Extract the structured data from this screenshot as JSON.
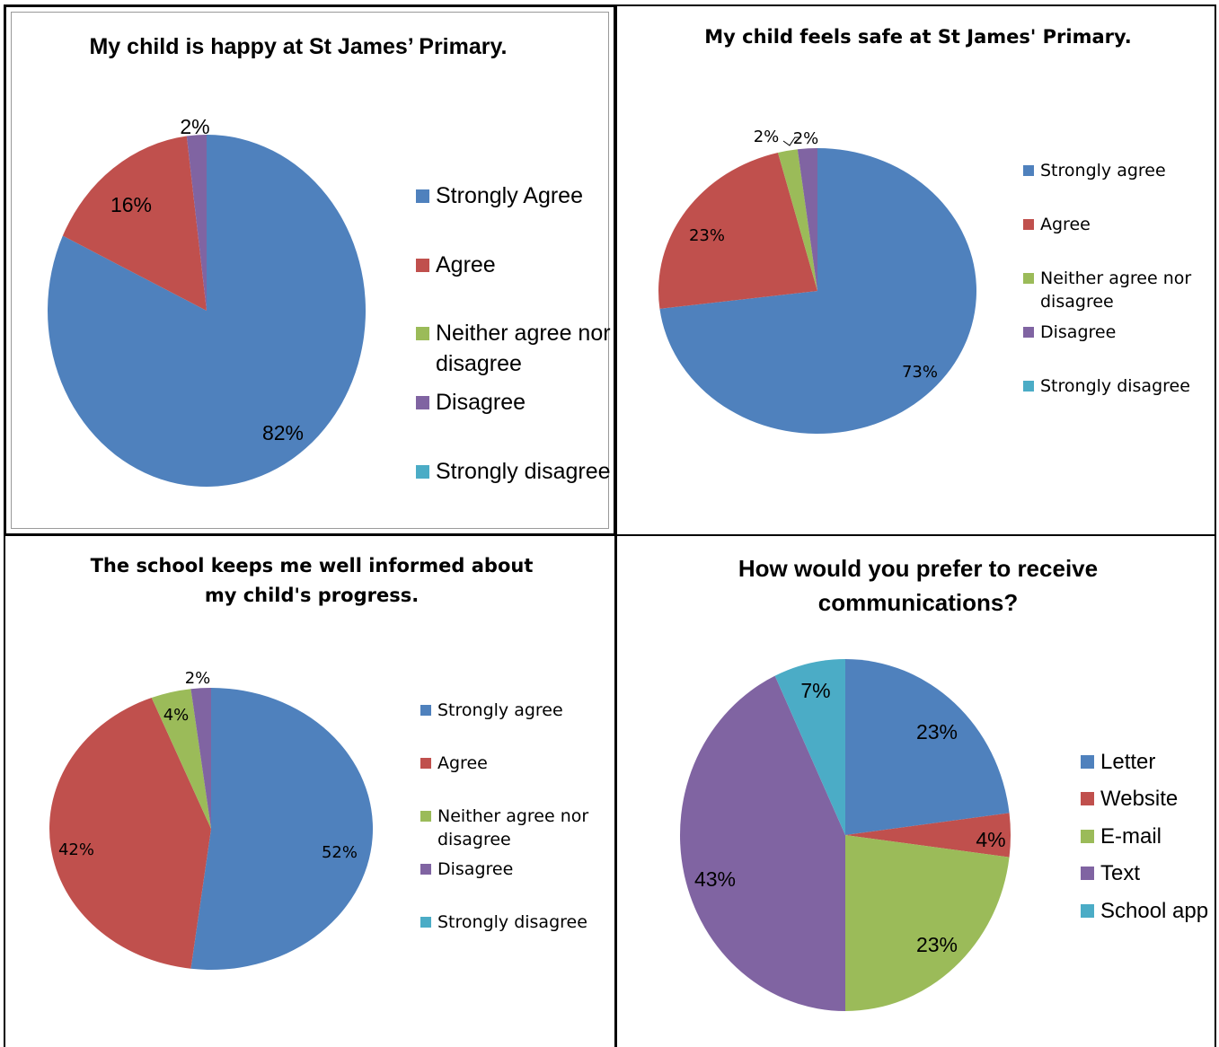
{
  "colors": {
    "blue": "#4F81BD",
    "red": "#C0504D",
    "green": "#9BBB59",
    "purple": "#8064A2",
    "teal": "#4BACC6"
  },
  "chart_data": [
    {
      "type": "pie",
      "title": "My child is happy at St James’ Primary.",
      "series": [
        {
          "name": "Strongly Agree",
          "value": 82,
          "label": "82%",
          "color": "#4F81BD"
        },
        {
          "name": "Agree",
          "value": 16,
          "label": "16%",
          "color": "#C0504D"
        },
        {
          "name": "Neither agree nor disagree",
          "value": 0,
          "label": "",
          "color": "#9BBB59"
        },
        {
          "name": "Disagree",
          "value": 2,
          "label": "2%",
          "color": "#8064A2"
        },
        {
          "name": "Strongly disagree",
          "value": 0,
          "label": "",
          "color": "#4BACC6"
        }
      ],
      "legend_position": "right"
    },
    {
      "type": "pie",
      "title": "My child feels safe at St James' Primary.",
      "series": [
        {
          "name": "Strongly agree",
          "value": 73,
          "label": "73%",
          "color": "#4F81BD"
        },
        {
          "name": "Agree",
          "value": 23,
          "label": "23%",
          "color": "#C0504D"
        },
        {
          "name": "Neither agree nor disagree",
          "value": 2,
          "label": "2%",
          "color": "#9BBB59"
        },
        {
          "name": "Disagree",
          "value": 2,
          "label": "2%",
          "color": "#8064A2"
        },
        {
          "name": "Strongly disagree",
          "value": 0,
          "label": "",
          "color": "#4BACC6"
        }
      ],
      "legend_position": "right"
    },
    {
      "type": "pie",
      "title": "The school keeps me well informed about my child's progress.",
      "series": [
        {
          "name": "Strongly agree",
          "value": 52,
          "label": "52%",
          "color": "#4F81BD"
        },
        {
          "name": "Agree",
          "value": 42,
          "label": "42%",
          "color": "#C0504D"
        },
        {
          "name": "Neither agree nor disagree",
          "value": 4,
          "label": "4%",
          "color": "#9BBB59"
        },
        {
          "name": "Disagree",
          "value": 2,
          "label": "2%",
          "color": "#8064A2"
        },
        {
          "name": "Strongly disagree",
          "value": 0,
          "label": "",
          "color": "#4BACC6"
        }
      ],
      "legend_position": "right"
    },
    {
      "type": "pie",
      "title": "How would you prefer to receive communications?",
      "series": [
        {
          "name": "Letter",
          "value": 23,
          "label": "23%",
          "color": "#4F81BD"
        },
        {
          "name": "Website",
          "value": 4,
          "label": "4%",
          "color": "#C0504D"
        },
        {
          "name": "E-mail",
          "value": 23,
          "label": "23%",
          "color": "#9BBB59"
        },
        {
          "name": "Text",
          "value": 43,
          "label": "43%",
          "color": "#8064A2"
        },
        {
          "name": "School app",
          "value": 7,
          "label": "7%",
          "color": "#4BACC6"
        }
      ],
      "legend_position": "right"
    }
  ],
  "titles": {
    "c0": "My child is happy at St James’ Primary.",
    "c1": "My child feels safe at St James' Primary.",
    "c2_line1": "The school keeps me well informed about",
    "c2_line2": "my child's progress.",
    "c3_line1": "How would you prefer to receive",
    "c3_line2": "communications?"
  },
  "legends": {
    "c0": [
      "Strongly Agree",
      "Agree",
      "Neither agree nor",
      "disagree",
      "Disagree",
      "Strongly disagree"
    ],
    "c1": [
      "Strongly agree",
      "Agree",
      "Neither agree nor",
      "disagree",
      "Disagree",
      "Strongly disagree"
    ],
    "c2": [
      "Strongly agree",
      "Agree",
      "Neither agree nor",
      "disagree",
      "Disagree",
      "Strongly disagree"
    ],
    "c3": [
      "Letter",
      "Website",
      "E-mail",
      "Text",
      "School app"
    ]
  }
}
